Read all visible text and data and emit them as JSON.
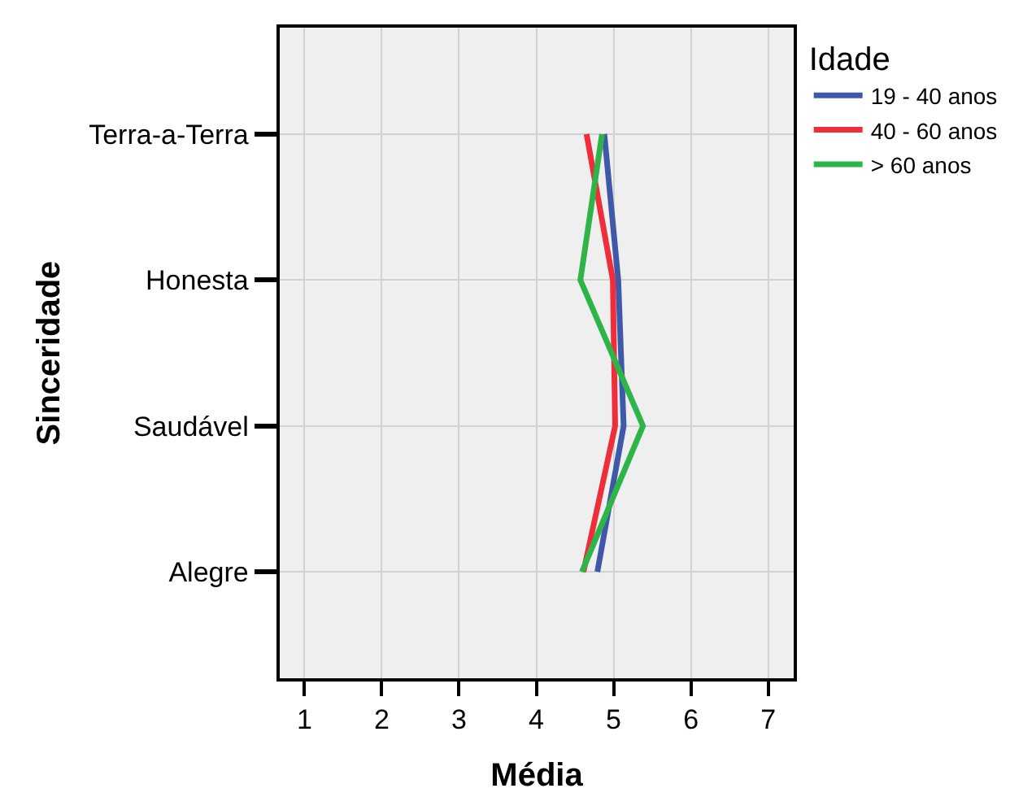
{
  "chart_data": {
    "type": "line",
    "orientation": "horizontal",
    "xlabel": "Média",
    "ylabel": "Sinceridade",
    "legend_title": "Idade",
    "categories": [
      "Terra-a-Terra",
      "Honesta",
      "Saudável",
      "Alegre"
    ],
    "series": [
      {
        "name": "19 - 40 anos",
        "color": "#3f59a8",
        "values": [
          4.88,
          5.06,
          5.13,
          4.79
        ]
      },
      {
        "name": "40 - 60 anos",
        "color": "#ee2e3b",
        "values": [
          4.65,
          4.99,
          5.02,
          4.61
        ]
      },
      {
        "name": "> 60 anos",
        "color": "#2fb44a",
        "values": [
          4.85,
          4.57,
          5.38,
          4.59
        ]
      }
    ],
    "xlim": [
      0.68,
      7.33
    ],
    "xticks": [
      1,
      2,
      3,
      4,
      5,
      6,
      7
    ],
    "grid": true,
    "legend": "top right",
    "line_style": "solid"
  }
}
